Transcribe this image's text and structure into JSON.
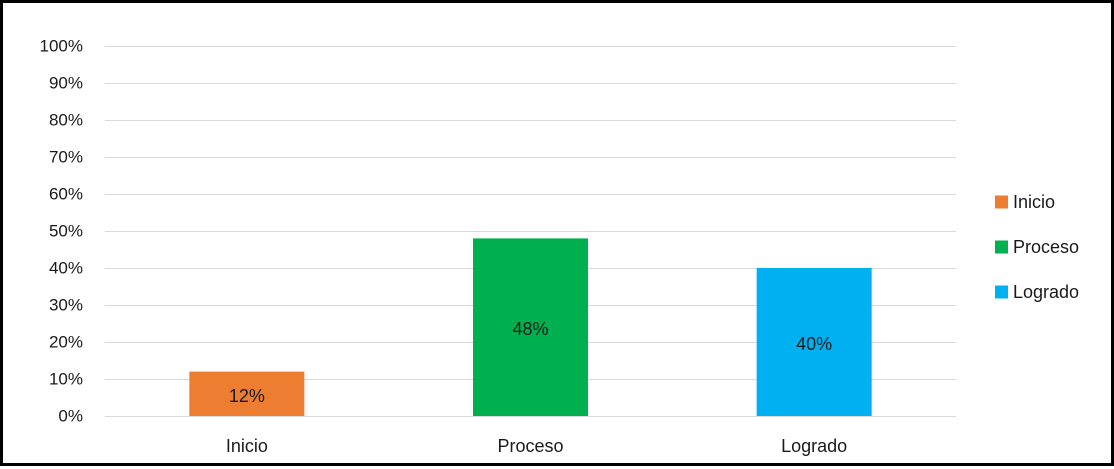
{
  "chart_data": {
    "type": "bar",
    "title": "",
    "xlabel": "",
    "ylabel": "",
    "categories": [
      "Inicio",
      "Proceso",
      "Logrado"
    ],
    "values": [
      12,
      48,
      40
    ],
    "value_unit": "%",
    "data_labels": [
      "12%",
      "48%",
      "40%"
    ],
    "colors": [
      "#ED7D31",
      "#00B050",
      "#00B0F0"
    ],
    "ylim": [
      0,
      100
    ],
    "yticks": [
      0,
      10,
      20,
      30,
      40,
      50,
      60,
      70,
      80,
      90,
      100
    ],
    "ytick_labels": [
      "0%",
      "10%",
      "20%",
      "30%",
      "40%",
      "50%",
      "60%",
      "70%",
      "80%",
      "90%",
      "100%"
    ],
    "grid": true,
    "gridline_color": "#d9d9d9",
    "legend_position": "right",
    "legend": [
      {
        "label": "Inicio",
        "color": "#ED7D31"
      },
      {
        "label": "Proceso",
        "color": "#00B050"
      },
      {
        "label": "Logrado",
        "color": "#00B0F0"
      }
    ]
  }
}
